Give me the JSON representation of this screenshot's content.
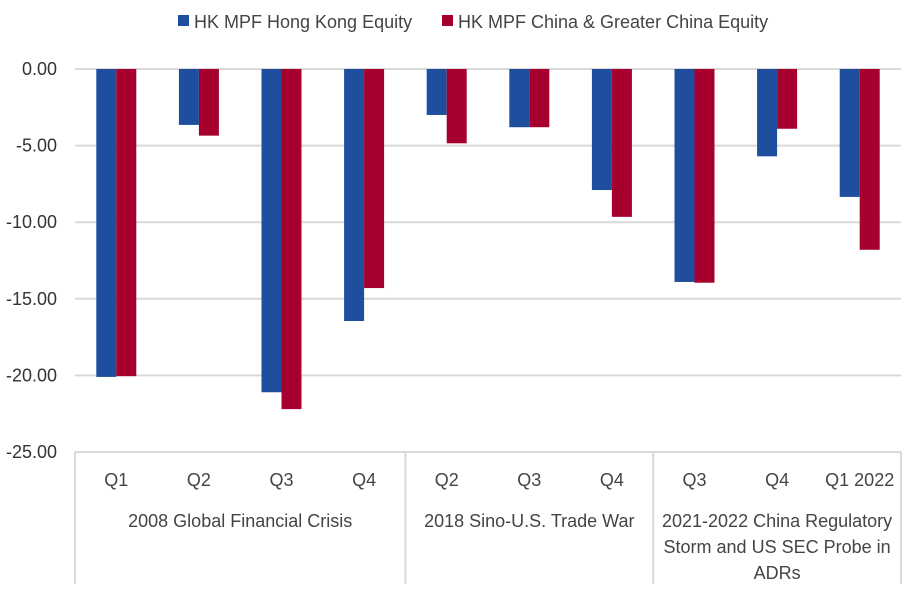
{
  "chart_data": {
    "type": "bar",
    "title": "",
    "xlabel": "",
    "ylabel": "",
    "ylim": [
      -25,
      0
    ],
    "yticks": [
      "0.00",
      "-5.00",
      "-10.00",
      "-15.00",
      "-20.00",
      "-25.00"
    ],
    "ytick_values": [
      0,
      -5,
      -10,
      -15,
      -20,
      -25
    ],
    "grid": true,
    "legend_position": "top",
    "categories": [
      "Q1",
      "Q2",
      "Q3",
      "Q4",
      "Q2",
      "Q3",
      "Q4",
      "Q3",
      "Q4",
      "Q1 2022"
    ],
    "groups": [
      {
        "label_lines": [
          "2008 Global Financial Crisis"
        ],
        "span": 4
      },
      {
        "label_lines": [
          "2018 Sino-U.S. Trade War"
        ],
        "span": 3
      },
      {
        "label_lines": [
          "2021-2022 China Regulatory",
          "Storm and US SEC Probe in",
          "ADRs"
        ],
        "span": 3
      }
    ],
    "series": [
      {
        "name": "HK MPF Hong Kong Equity",
        "color": "#1F4E9E",
        "values": [
          -20.1,
          -3.65,
          -21.1,
          -16.45,
          -3.0,
          -3.8,
          -7.9,
          -13.9,
          -5.7,
          -8.35
        ]
      },
      {
        "name": "HK MPF China & Greater China Equity",
        "color": "#A6002F",
        "values": [
          -20.05,
          -4.35,
          -22.2,
          -14.3,
          -4.85,
          -3.8,
          -9.65,
          -13.95,
          -3.9,
          -11.8
        ]
      }
    ]
  }
}
